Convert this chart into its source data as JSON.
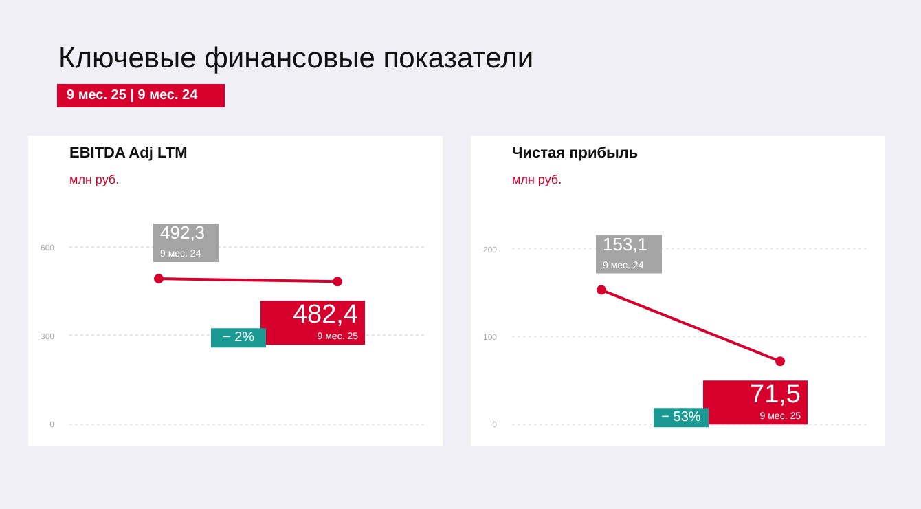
{
  "chart_data": [
    {
      "type": "other",
      "title": "Ключевые финансовые показатели",
      "annotations": [
        "9 мес. 25 | 9 мес. 24"
      ]
    },
    {
      "type": "line",
      "title": "EBITDA Adj LTM",
      "subtitle": "млн руб.",
      "categories": [
        "9 мес. 24",
        "9 мес. 25"
      ],
      "values": [
        492.3,
        482.4
      ],
      "value_labels": [
        "492,3",
        "482,4"
      ],
      "color": "#d7002c",
      "marker": "circle",
      "ylim": [
        -20,
        800
      ],
      "yticks": [
        0,
        300,
        600
      ],
      "grid": "y",
      "tick_labels": "y",
      "annotations": [
        "− 2%"
      ]
    },
    {
      "type": "line",
      "title": "Чистая прибыль",
      "subtitle": "млн руб.",
      "categories": [
        "9 мес. 24",
        "9 мес. 25"
      ],
      "values": [
        153.1,
        71.5
      ],
      "value_labels": [
        "153,1",
        "71,5"
      ],
      "color": "#d7002c",
      "marker": "circle",
      "ylim": [
        -7,
        270
      ],
      "yticks": [
        0,
        100,
        200
      ],
      "grid": "y",
      "tick_labels": "y",
      "annotations": [
        "− 53%"
      ]
    }
  ]
}
